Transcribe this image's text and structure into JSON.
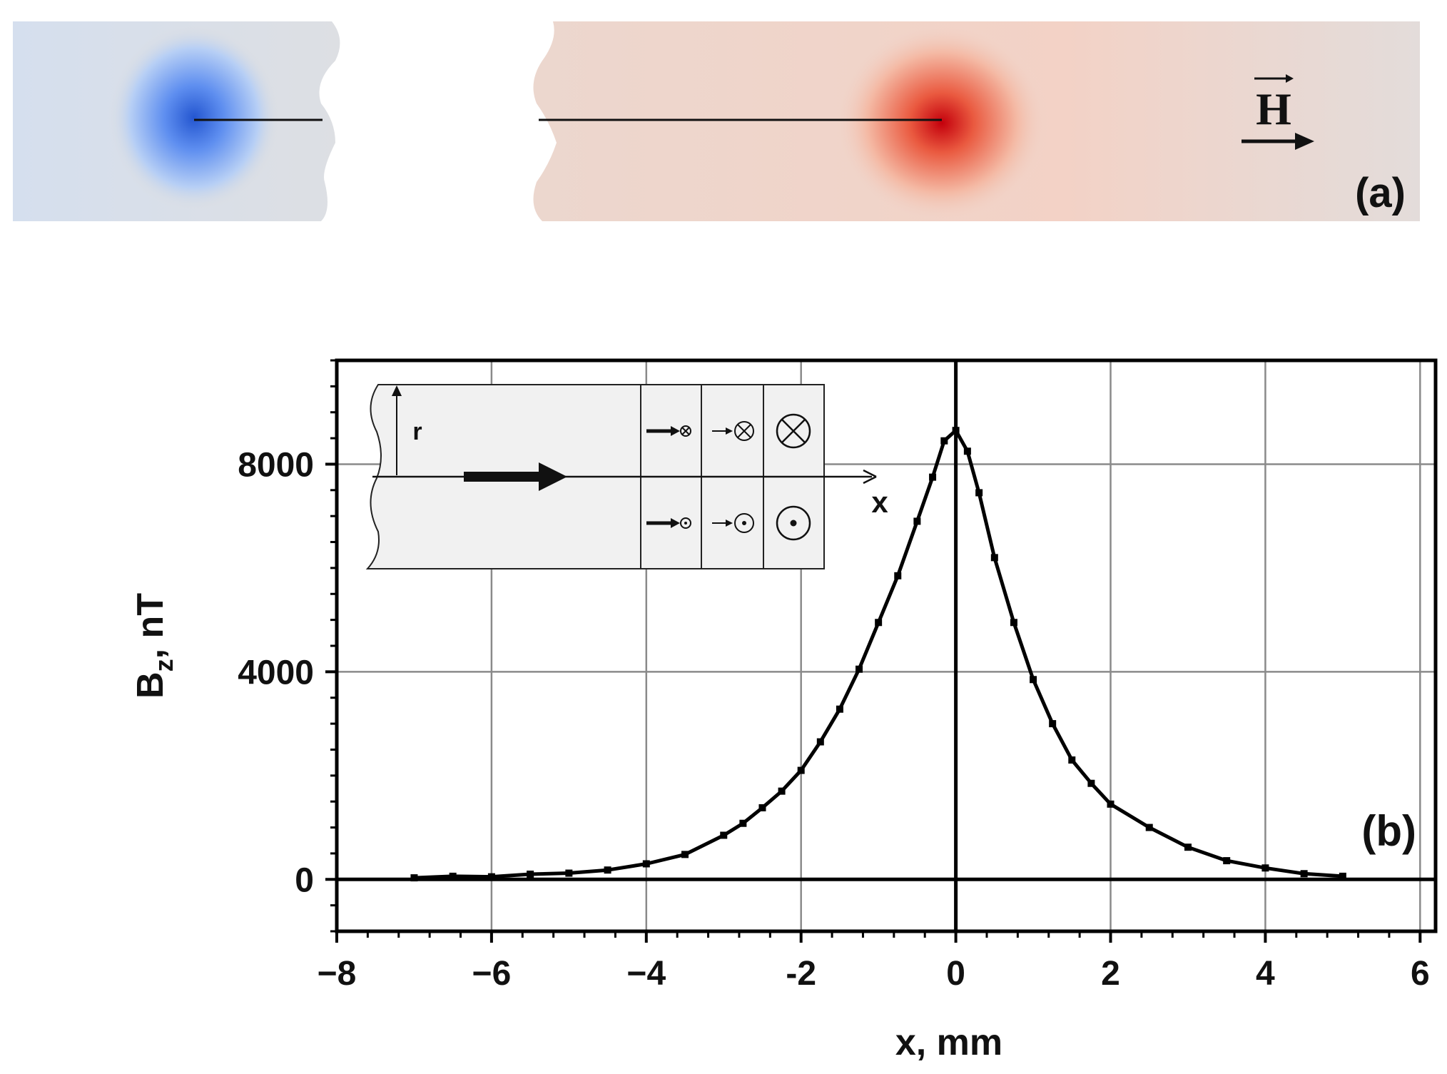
{
  "panel_a": {
    "label": "(a)",
    "field_symbol": "H",
    "colors": {
      "negative": "#2b5fd9",
      "positive": "#cc1010",
      "background": "#dedede"
    }
  },
  "panel_b": {
    "label": "(b)",
    "inset": {
      "r_label": "r",
      "x_label": "x"
    }
  },
  "chart_data": {
    "type": "line",
    "xlabel": "x, mm",
    "ylabel": "B_z, nT",
    "ylabel_main": "B",
    "ylabel_sub": "z",
    "ylabel_rest": ", nT",
    "xlim": [
      -8,
      6.2
    ],
    "ylim": [
      -1000,
      10000
    ],
    "xticks": [
      -8,
      -6,
      -4,
      -2,
      0,
      2,
      4,
      6
    ],
    "xtick_labels": [
      "−8",
      "−6",
      "−4",
      "-2",
      "0",
      "2",
      "4",
      "6"
    ],
    "yticks": [
      0,
      4000,
      8000
    ],
    "ytick_labels": [
      "0",
      "4000",
      "8000"
    ],
    "grid": true,
    "series": [
      {
        "x": [
          -7.0,
          -6.5,
          -6.0,
          -5.5,
          -5.0,
          -4.5,
          -4.0,
          -3.5,
          -3.0,
          -2.75,
          -2.5,
          -2.25,
          -2.0,
          -1.75,
          -1.5,
          -1.25,
          -1.0,
          -0.75,
          -0.5,
          -0.3,
          -0.15,
          0.0,
          0.15,
          0.3,
          0.5,
          0.75,
          1.0,
          1.25,
          1.5,
          1.75,
          2.0,
          2.5,
          3.0,
          3.5,
          4.0,
          4.5,
          5.0
        ],
        "y": [
          30,
          60,
          50,
          100,
          120,
          180,
          300,
          480,
          850,
          1080,
          1380,
          1700,
          2100,
          2650,
          3280,
          4050,
          4950,
          5850,
          6900,
          7750,
          8450,
          8650,
          8250,
          7450,
          6200,
          4950,
          3850,
          3000,
          2300,
          1850,
          1450,
          1000,
          620,
          360,
          220,
          110,
          60
        ]
      }
    ]
  }
}
